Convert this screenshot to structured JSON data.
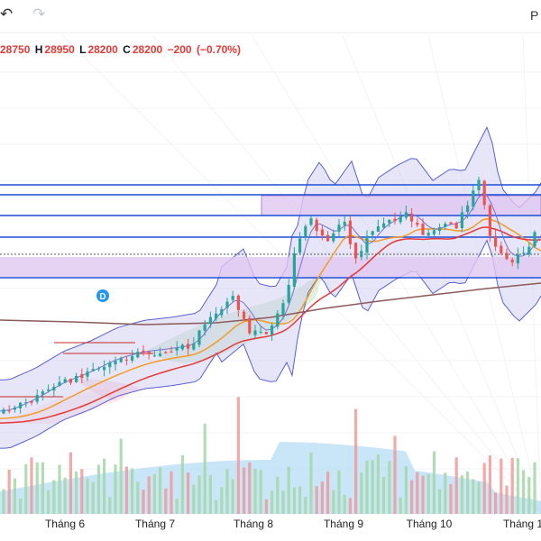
{
  "toolbar": {
    "undo_icon": "undo-icon",
    "redo_icon": "redo-icon",
    "right_label": "P"
  },
  "ohlc": {
    "open_label": "",
    "open": "28750",
    "high_label": "H",
    "high": "28950",
    "low_label": "L",
    "low": "28200",
    "close_label": "C",
    "close": "28200",
    "change": "−200",
    "change_pct": "(−0.70%)",
    "label_color": "#131722",
    "value_color": "#e53935"
  },
  "colors": {
    "up": "#26a69a",
    "down": "#ef5350",
    "bollinger": "#5b5fcf",
    "bollinger_fill": "#c9c8f0",
    "ma_orange": "#f59a23",
    "ma_red": "#e53935",
    "ma_brown": "#8d5a5a",
    "level_blue": "#1e4fd8",
    "zone_fill": "#e0c8f0",
    "volume_area": "#9ad2f0",
    "ichimoku_green": "#c8e6c9",
    "ichimoku_red": "#ffcdd2"
  },
  "markers": [
    {
      "label": "D",
      "color": "#2196f3"
    }
  ],
  "chart_data": {
    "type": "candlestick",
    "x_axis_labels": [
      "Tháng 6",
      "Tháng 7",
      "Tháng 8",
      "Tháng 9",
      "Tháng 10",
      "Tháng 1"
    ],
    "last_candle": {
      "open": 28750,
      "high": 28950,
      "low": 28200,
      "close": 28200,
      "change": -200,
      "change_pct": -0.7
    },
    "horizontal_levels": 6,
    "zones": 2,
    "indicators": [
      "Bollinger Bands",
      "Moving averages",
      "Ichimoku cloud",
      "Volume"
    ]
  }
}
